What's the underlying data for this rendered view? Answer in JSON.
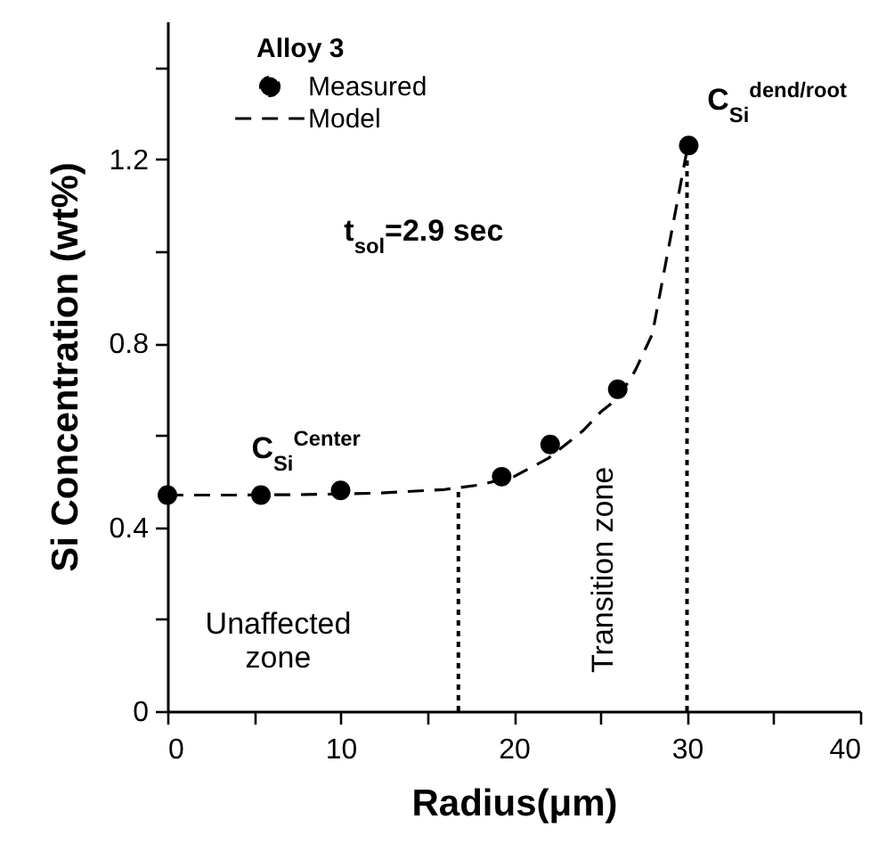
{
  "chart_data": {
    "type": "scatter",
    "xlabel": "Radius(μm)",
    "ylabel": "Si Concentration (wt%)",
    "legend_title": "Alloy 3",
    "legend": "top left",
    "xlim": [
      0,
      40
    ],
    "xticks": [
      0,
      {
        "value": 5,
        "label": null
      },
      10,
      {
        "value": 15,
        "label": null
      },
      20,
      {
        "value": 25,
        "label": null
      },
      30,
      {
        "value": 35,
        "label": null
      },
      40
    ],
    "ylim": [
      0,
      1.5
    ],
    "yticks": [
      0,
      {
        "value": 0.2,
        "label": null
      },
      0.4,
      {
        "value": 0.6,
        "label": null
      },
      0.8,
      {
        "value": 1.0,
        "label": null
      },
      1.2,
      {
        "value": 1.4,
        "label": null
      }
    ],
    "series": [
      {
        "name": "Measured",
        "marker": "circle",
        "color": "#000000",
        "x": [
          0,
          5.4,
          10,
          19.3,
          22.1,
          26,
          30.1
        ],
        "values": [
          0.47,
          0.47,
          0.48,
          0.51,
          0.58,
          0.7,
          1.23
        ]
      },
      {
        "name": "Model",
        "type": "line",
        "line_style": "dashed",
        "color": "#000000",
        "x": [
          0,
          4,
          8,
          12,
          16,
          18,
          20,
          22,
          24,
          25,
          26,
          27,
          28,
          29,
          29.5,
          30
        ],
        "values": [
          0.47,
          0.47,
          0.471,
          0.474,
          0.482,
          0.492,
          0.51,
          0.55,
          0.61,
          0.65,
          0.68,
          0.74,
          0.82,
          1.02,
          1.12,
          1.22
        ]
      }
    ],
    "ref_lines": [
      {
        "axis": "x",
        "value": 16.8,
        "color": "#000000",
        "line_style": "dotted"
      },
      {
        "axis": "x",
        "value": 30,
        "color": "#000000",
        "line_style": "dotted"
      }
    ],
    "annotations": [
      "C$_{Si}$$^{Center}$",
      "C$_{Si}$$^{dend/root}$",
      "t$_{sol}$=2.9 sec",
      "Unaffected\nzone",
      "Transition zone"
    ]
  }
}
